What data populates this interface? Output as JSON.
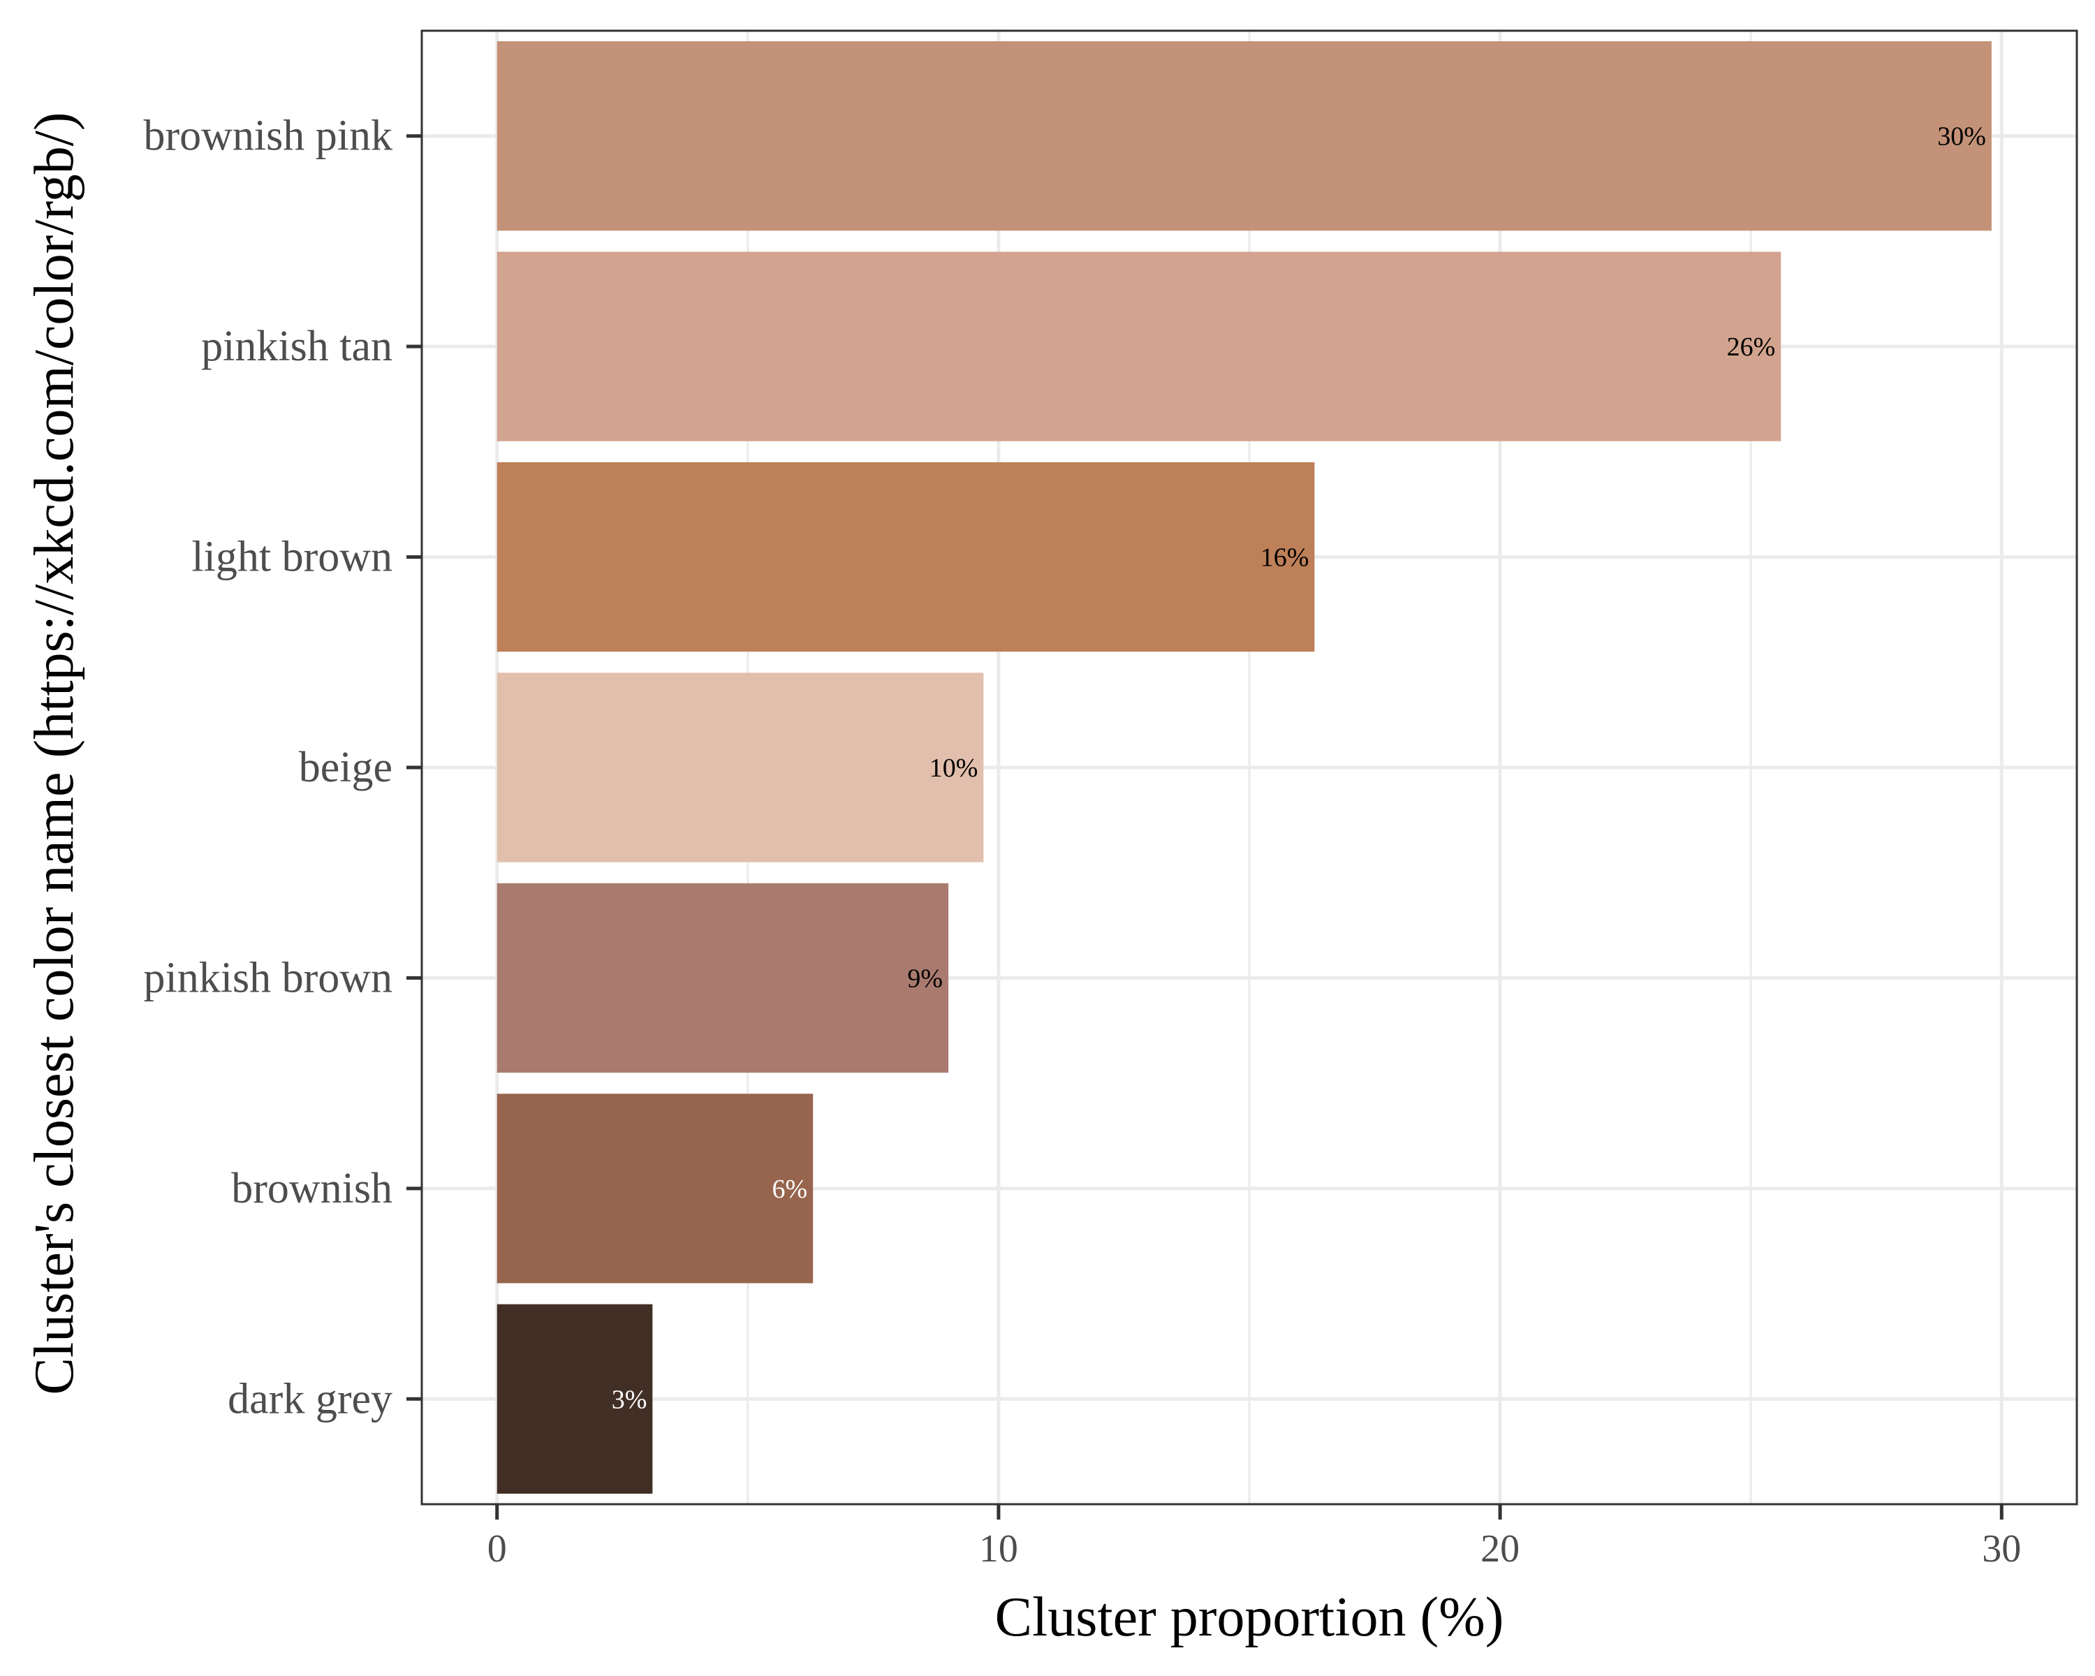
{
  "chart_data": {
    "type": "bar",
    "orientation": "horizontal",
    "categories": [
      "brownish pink",
      "pinkish tan",
      "light brown",
      "beige",
      "pinkish brown",
      "brownish",
      "dark grey"
    ],
    "values": [
      29.8,
      25.6,
      16.3,
      9.7,
      9.0,
      6.3,
      3.1
    ],
    "value_labels": [
      "30%",
      "26%",
      "16%",
      "10%",
      "9%",
      "6%",
      "3%"
    ],
    "bar_colors": [
      "#c49278",
      "#d2a48f",
      "#bd8058",
      "#e1bfac",
      "#a97b6f",
      "#97654d",
      "#412f25"
    ],
    "label_colors": [
      "#000000",
      "#000000",
      "#000000",
      "#000000",
      "#000000",
      "#ffffff",
      "#ffffff"
    ],
    "xlabel": "Cluster proportion (%)",
    "ylabel": "Cluster's closest color name (https://xkcd.com/color/rgb/)",
    "xlim": [
      -1.5,
      31.5
    ],
    "xticks": [
      0,
      10,
      20,
      30
    ],
    "xtick_labels": [
      "0",
      "10",
      "20",
      "30"
    ],
    "grid": true,
    "legend": "none",
    "colors": {
      "grid": "#ebebeb",
      "panel_border": "#333333",
      "axis_text": "#4d4d4d",
      "tick_mark": "#333333"
    }
  }
}
